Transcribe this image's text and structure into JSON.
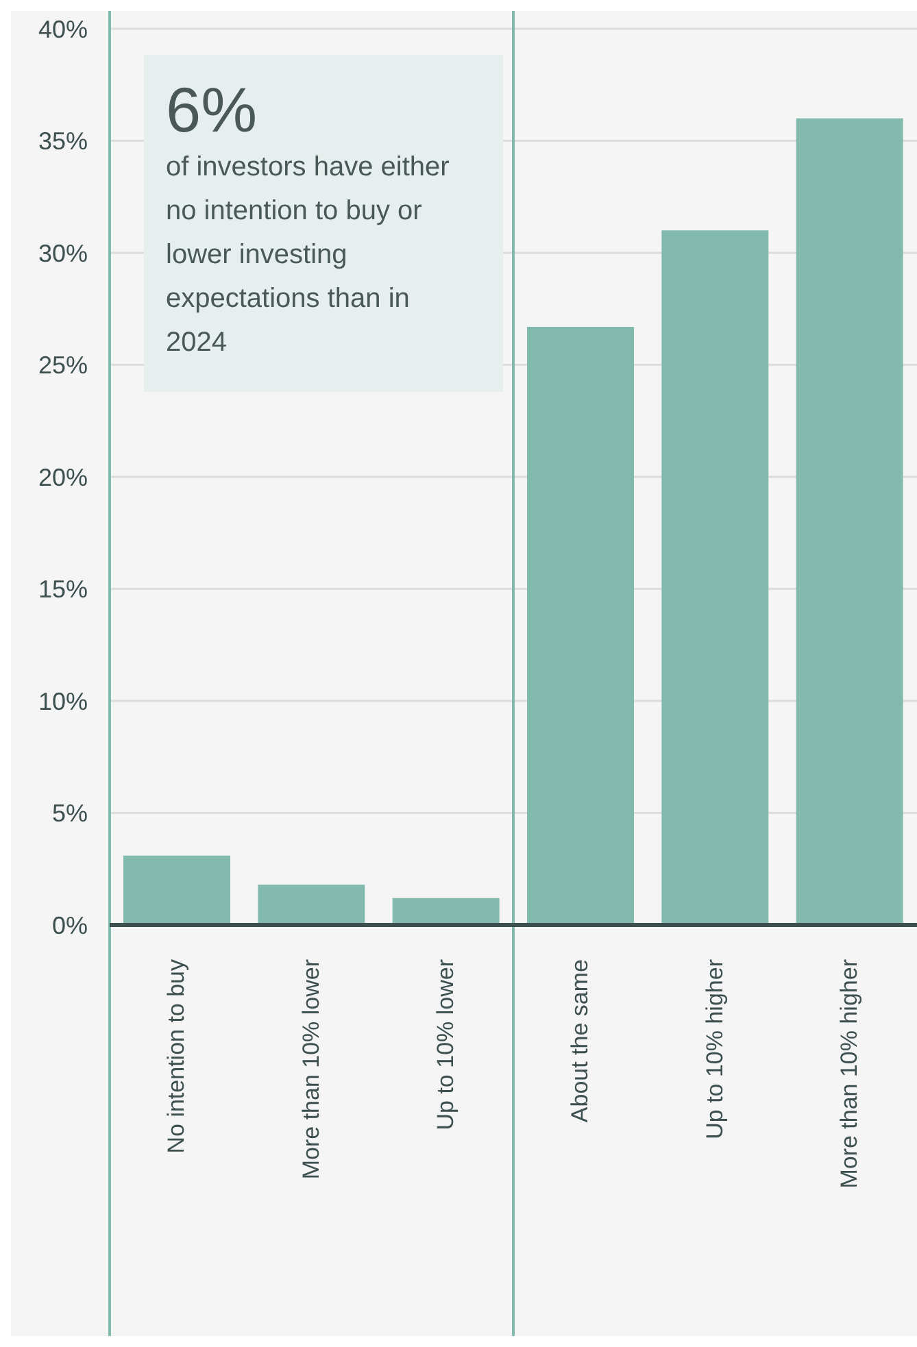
{
  "chart_data": {
    "type": "bar",
    "categories": [
      "No intention to buy",
      "More than 10% lower",
      "Up to 10% lower",
      "About the same",
      "Up to 10% higher",
      "More than 10% higher"
    ],
    "values": [
      3.1,
      1.8,
      1.2,
      26.7,
      31.0,
      36.0
    ],
    "color": "#82bbad",
    "ylim": [
      0,
      40
    ],
    "yticks": [
      {
        "value": 0,
        "label": "0%"
      },
      {
        "value": 5,
        "label": "5%"
      },
      {
        "value": 10,
        "label": "10%"
      },
      {
        "value": 15,
        "label": "15%"
      },
      {
        "value": 20,
        "label": "20%"
      },
      {
        "value": 25,
        "label": "25%"
      },
      {
        "value": 30,
        "label": "30%"
      },
      {
        "value": 35,
        "label": "35%"
      },
      {
        "value": 40,
        "label": "40%"
      }
    ],
    "grid": "y",
    "bands": [
      {
        "axis": "x",
        "from": "No intention to buy",
        "to": "Up to 10% lower"
      }
    ],
    "annotations": [
      "6%",
      "of investors have either no intention to buy or lower investing expectations than in 2024"
    ]
  }
}
